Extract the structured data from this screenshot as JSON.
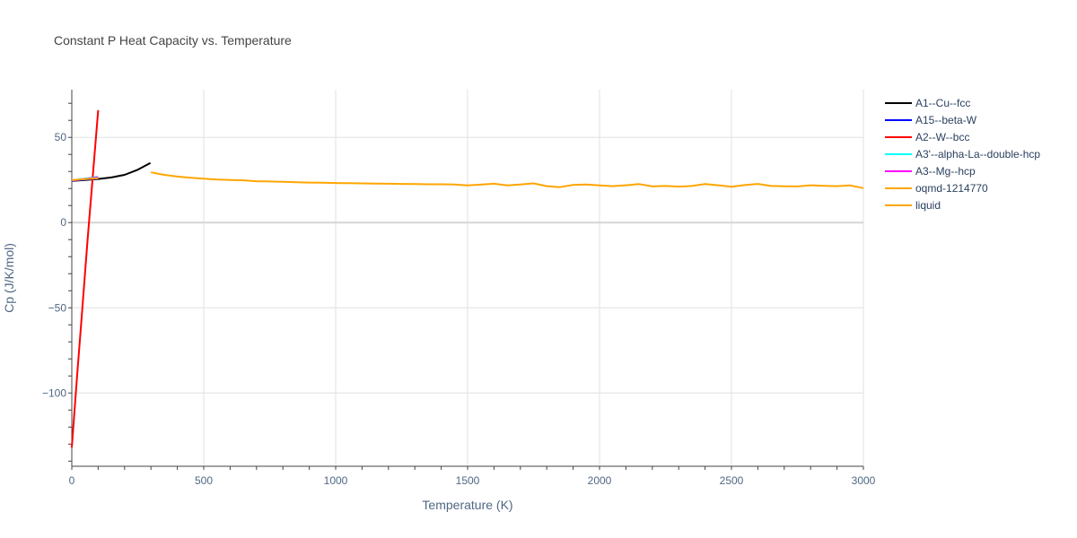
{
  "chart_data": {
    "type": "line",
    "title": "Constant P Heat Capacity vs. Temperature",
    "xlabel": "Temperature (K)",
    "ylabel": "Cp (J/K/mol)",
    "xlim": [
      0,
      3000
    ],
    "ylim": [
      -143,
      78
    ],
    "x_ticks": [
      0,
      500,
      1000,
      1500,
      2000,
      2500,
      3000
    ],
    "x_tick_labels": [
      "0",
      "500",
      "1000",
      "1500",
      "2000",
      "2500",
      "3000"
    ],
    "y_ticks": [
      -100,
      -50,
      0,
      50
    ],
    "y_tick_labels": [
      "−100",
      "−50",
      "0",
      "50"
    ],
    "grid": true,
    "legend_position": "right",
    "series": [
      {
        "name": "A1--Cu--fcc",
        "color": "#000000",
        "x": [
          0,
          50,
          100,
          150,
          200,
          250,
          298
        ],
        "y": [
          24.5,
          25.0,
          25.6,
          26.5,
          28.0,
          31.0,
          35.0
        ]
      },
      {
        "name": "A15--beta-W",
        "color": "#0000ff",
        "x": [
          0,
          50,
          100
        ],
        "y": [
          24.6,
          25.2,
          25.9
        ]
      },
      {
        "name": "A2--W--bcc",
        "color": "#ff0000",
        "x": [
          0,
          20,
          40,
          60,
          80,
          100
        ],
        "y": [
          -132,
          -90,
          -50,
          -10,
          28,
          66
        ]
      },
      {
        "name": "A3'--alpha-La--double-hcp",
        "color": "#00ffff",
        "x": [
          0,
          50,
          100
        ],
        "y": [
          24.8,
          25.8,
          26.8
        ]
      },
      {
        "name": "A3--Mg--hcp",
        "color": "#ff00ff",
        "x": [
          0,
          50,
          100
        ],
        "y": [
          24.7,
          25.6,
          26.5
        ]
      },
      {
        "name": "oqmd-1214770",
        "color": "#ffa500",
        "x": [
          0,
          50,
          100
        ],
        "y": [
          24.9,
          25.5,
          26.0
        ]
      },
      {
        "name": "liquid",
        "color": "#ffa500",
        "x": [
          300,
          350,
          400,
          450,
          500,
          550,
          600,
          650,
          700,
          750,
          800,
          850,
          900,
          950,
          1000,
          1050,
          1100,
          1150,
          1200,
          1250,
          1300,
          1350,
          1400,
          1450,
          1500,
          1550,
          1600,
          1650,
          1700,
          1750,
          1800,
          1850,
          1900,
          1950,
          2000,
          2050,
          2100,
          2150,
          2200,
          2250,
          2300,
          2350,
          2400,
          2450,
          2500,
          2550,
          2600,
          2650,
          2700,
          2750,
          2800,
          2850,
          2900,
          2950,
          3000
        ],
        "y": [
          29.5,
          28.0,
          27.0,
          26.3,
          25.8,
          25.2,
          25.0,
          24.8,
          24.3,
          24.1,
          23.9,
          23.7,
          23.5,
          23.4,
          23.2,
          23.1,
          23.0,
          22.9,
          22.8,
          22.7,
          22.6,
          22.5,
          22.5,
          22.4,
          21.8,
          22.3,
          22.8,
          21.8,
          22.4,
          23.0,
          21.4,
          20.8,
          22.1,
          22.4,
          21.8,
          21.4,
          21.9,
          22.6,
          21.2,
          21.5,
          21.1,
          21.5,
          22.6,
          21.9,
          21.0,
          22.0,
          22.7,
          21.5,
          21.3,
          21.2,
          21.9,
          21.6,
          21.4,
          21.8,
          20.2
        ]
      }
    ]
  }
}
